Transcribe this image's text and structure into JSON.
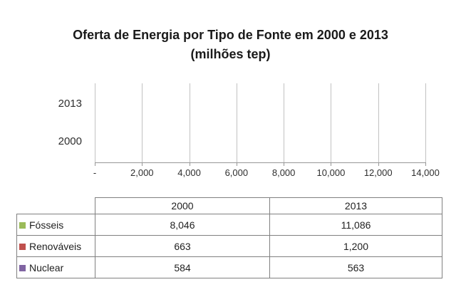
{
  "title": {
    "line1": "Oferta de Energia por Tipo de Fonte em 2000 e 2013",
    "line2": "(milhões tep)"
  },
  "chart_data": {
    "type": "bar",
    "orientation": "horizontal",
    "stacked": true,
    "title": "Oferta de Energia por Tipo de Fonte em 2000 e 2013 (milhões tep)",
    "categories": [
      "2013",
      "2000"
    ],
    "series": [
      {
        "name": "Fósseis",
        "color": "#9BBB59",
        "values": [
          11086,
          8046
        ]
      },
      {
        "name": "Renováveis",
        "color": "#C0504D",
        "values": [
          1200,
          663
        ]
      },
      {
        "name": "Nuclear",
        "color": "#8064A2",
        "values": [
          563,
          584
        ]
      }
    ],
    "xlim": [
      0,
      14000
    ],
    "x_ticks": [
      0,
      2000,
      4000,
      6000,
      8000,
      10000,
      12000,
      14000
    ],
    "x_tick_labels": [
      "-",
      "2,000",
      "4,000",
      "6,000",
      "8,000",
      "10,000",
      "12,000",
      "14,000"
    ],
    "grid": "vertical",
    "legend_position": "table-rows-left"
  },
  "table": {
    "columns": [
      "",
      "2000",
      "2013"
    ],
    "rows": [
      {
        "label": "Fósseis",
        "color": "#9BBB59",
        "values": [
          "8,046",
          "11,086"
        ]
      },
      {
        "label": "Renováveis",
        "color": "#C0504D",
        "values": [
          "663",
          "1,200"
        ]
      },
      {
        "label": "Nuclear",
        "color": "#8064A2",
        "values": [
          "584",
          "563"
        ]
      }
    ]
  },
  "style": {
    "grid_color": "#c2c2c2",
    "axis_color": "#979797",
    "table_border_color": "#808080",
    "text_color": "#1a1a1a"
  }
}
